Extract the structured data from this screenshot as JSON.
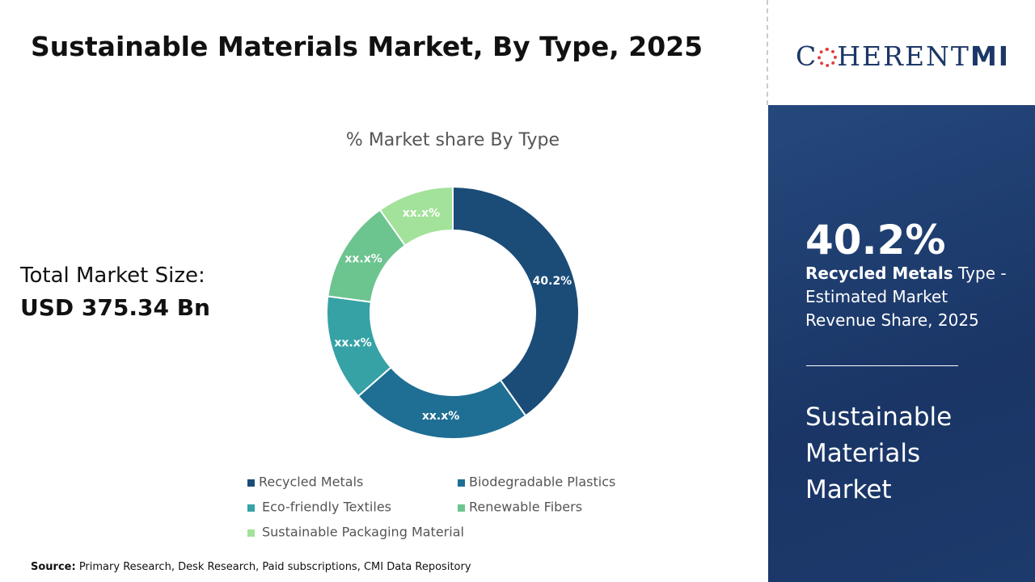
{
  "header": {
    "title": "Sustainable Materials Market, By Type, 2025"
  },
  "chart_data": {
    "type": "donut",
    "title": "% Market share By Type",
    "categories": [
      "Recycled Metals",
      "Biodegradable Plastics",
      "Eco-friendly Textiles",
      "Renewable Fibers",
      "Sustainable Packaging Material"
    ],
    "values": [
      40.2,
      23.3,
      13.6,
      13.1,
      9.8
    ],
    "value_labels": [
      "40.2%",
      "xx.x%",
      "xx.x%",
      "xx.x%",
      "xx.x%"
    ],
    "colors": [
      "#1b4c78",
      "#1f6e94",
      "#36a2a5",
      "#6cc48f",
      "#a3e29a"
    ],
    "legend": "bottom"
  },
  "summary": {
    "label": "Total Market Size:",
    "value": "USD 375.34 Bn"
  },
  "source": {
    "label": "Source:",
    "text": " Primary Research, Desk Research, Paid subscriptions, CMI Data Repository"
  },
  "logo": {
    "first": "C",
    "rest": "HERENT",
    "mark": "MI"
  },
  "sidebar": {
    "highlight": "40.2%",
    "segment": "Recycled Metals",
    "description": " Type - Estimated Market Revenue Share, 2025",
    "market": "Sustainable Materials Market"
  }
}
